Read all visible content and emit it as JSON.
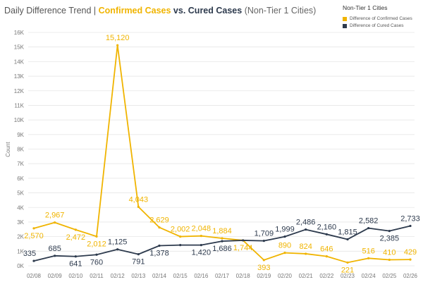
{
  "header": {
    "title_prefix": "Daily Difference Trend | ",
    "title_series1": "Confirmed Cases",
    "title_vs": " vs. ",
    "title_series2": "Cured Cases",
    "title_suffix": " (Non-Tier 1 Cities)"
  },
  "legend": {
    "title": "Non-Tier 1 Cities",
    "items": [
      "Difference of Confirmed Cases",
      "Difference of Cured Cases"
    ]
  },
  "colors": {
    "confirmed": "#f0b400",
    "cured": "#2d3a4d",
    "grid": "#e6e6e6"
  },
  "chart_data": {
    "type": "line",
    "title": "Daily Difference Trend | Confirmed Cases vs. Cured Cases (Non-Tier 1 Cities)",
    "xlabel": "",
    "ylabel": "Count",
    "ylim": [
      0,
      16000
    ],
    "yticks": [
      0,
      1000,
      2000,
      3000,
      4000,
      5000,
      6000,
      7000,
      8000,
      9000,
      10000,
      11000,
      12000,
      13000,
      14000,
      15000,
      16000
    ],
    "ytick_labels": [
      "0K",
      "1K",
      "2K",
      "3K",
      "4K",
      "5K",
      "6K",
      "7K",
      "8K",
      "9K",
      "10K",
      "11K",
      "12K",
      "13K",
      "14K",
      "15K",
      "16K"
    ],
    "categories": [
      "02/08",
      "02/09",
      "02/10",
      "02/11",
      "02/12",
      "02/13",
      "02/14",
      "02/15",
      "02/16",
      "02/17",
      "02/18",
      "02/19",
      "02/20",
      "02/21",
      "02/22",
      "02/23",
      "02/24",
      "02/25",
      "02/26"
    ],
    "series": [
      {
        "name": "Difference of Confirmed Cases",
        "color": "#f0b400",
        "values": [
          2570,
          2967,
          2472,
          2012,
          15120,
          4043,
          2629,
          2002,
          2048,
          1884,
          1744,
          393,
          890,
          824,
          646,
          221,
          516,
          410,
          429
        ],
        "labels": [
          "2,570",
          "2,967",
          "2,472",
          "2,012",
          "15,120",
          "4,043",
          "2,629",
          "2,002",
          "2,048",
          "1,884",
          "1,744",
          "393",
          "890",
          "824",
          "646",
          "221",
          "516",
          "410",
          "429"
        ]
      },
      {
        "name": "Difference of Cured Cases",
        "color": "#2d3a4d",
        "values": [
          335,
          685,
          641,
          760,
          1125,
          791,
          1378,
          1420,
          1420,
          1686,
          1744,
          1709,
          1999,
          2486,
          2160,
          1815,
          2582,
          2385,
          2733
        ],
        "labels": [
          "335",
          "685",
          "641",
          "760",
          "1,125",
          "791",
          "1,378",
          null,
          "1,420",
          "1,686",
          null,
          "1,709",
          "1,999",
          "2,486",
          "2,160",
          "1,815",
          "2,582",
          "2,385",
          "2,733"
        ]
      }
    ]
  }
}
